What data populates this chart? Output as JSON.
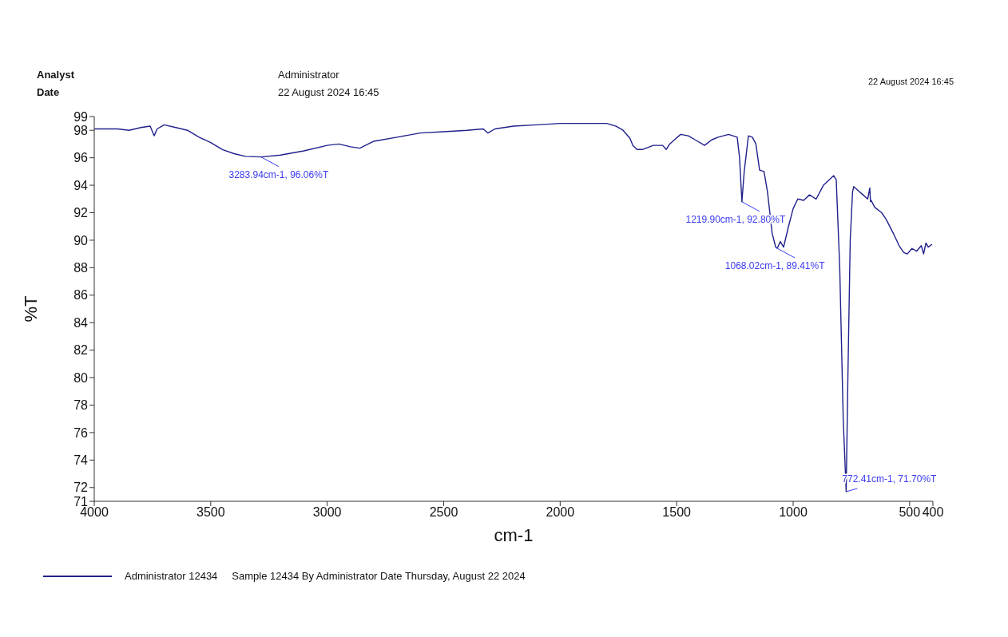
{
  "chart_data": {
    "type": "line",
    "xlabel": "cm-1",
    "ylabel": "%T",
    "x": [
      4000,
      3900,
      3850,
      3800,
      3760,
      3743,
      3730,
      3700,
      3650,
      3600,
      3550,
      3500,
      3450,
      3400,
      3350,
      3283.94,
      3200,
      3100,
      3000,
      2950,
      2900,
      2860,
      2800,
      2700,
      2600,
      2500,
      2400,
      2330,
      2310,
      2280,
      2200,
      2100,
      2000,
      1900,
      1800,
      1760,
      1730,
      1700,
      1688,
      1670,
      1647,
      1600,
      1560,
      1545,
      1530,
      1510,
      1483,
      1450,
      1420,
      1380,
      1350,
      1322,
      1277,
      1240,
      1230,
      1219.9,
      1210,
      1192,
      1175,
      1160,
      1144,
      1125,
      1110,
      1090,
      1075,
      1068.02,
      1055,
      1041,
      1020,
      1000,
      980,
      955,
      930,
      901,
      870,
      826,
      815,
      800,
      785,
      772.41,
      765,
      755,
      745,
      740,
      720,
      700,
      680,
      671,
      668,
      665,
      650,
      620,
      600,
      570,
      545,
      525,
      510,
      490,
      470,
      450,
      440,
      430,
      420,
      404
    ],
    "series": [
      {
        "name": "Administrator 12434",
        "color": "#20208c",
        "values": [
          98.1,
          98.1,
          98.0,
          98.2,
          98.3,
          97.6,
          98.1,
          98.4,
          98.2,
          98.0,
          97.5,
          97.1,
          96.6,
          96.3,
          96.1,
          96.06,
          96.2,
          96.5,
          96.9,
          97.0,
          96.8,
          96.7,
          97.2,
          97.5,
          97.8,
          97.9,
          98.0,
          98.1,
          97.8,
          98.1,
          98.3,
          98.4,
          98.5,
          98.5,
          98.5,
          98.3,
          98.0,
          97.4,
          96.9,
          96.6,
          96.6,
          96.9,
          96.9,
          96.6,
          97.0,
          97.3,
          97.7,
          97.6,
          97.3,
          96.9,
          97.3,
          97.5,
          97.7,
          97.5,
          96.0,
          92.8,
          95.0,
          97.6,
          97.5,
          97.0,
          95.1,
          95.0,
          93.5,
          90.5,
          89.5,
          89.41,
          89.9,
          89.5,
          91.0,
          92.3,
          93.0,
          92.9,
          93.3,
          93.0,
          94.0,
          94.7,
          94.4,
          88.0,
          77.0,
          71.7,
          80.0,
          90.0,
          93.5,
          93.9,
          93.6,
          93.3,
          93.0,
          93.8,
          92.8,
          92.9,
          92.4,
          92.0,
          91.5,
          90.5,
          89.6,
          89.1,
          89.0,
          89.4,
          89.2,
          89.6,
          89.0,
          89.8,
          89.5,
          89.7
        ]
      }
    ],
    "xlim": [
      4000,
      400
    ],
    "xticks": [
      4000,
      3500,
      3000,
      2500,
      2000,
      1500,
      1000,
      500,
      400
    ],
    "ylim": [
      71,
      99
    ],
    "yticks": [
      71,
      72,
      74,
      76,
      78,
      80,
      82,
      84,
      86,
      88,
      90,
      92,
      94,
      96,
      98,
      99
    ],
    "grid": false,
    "marker": "none",
    "line_style": "solid",
    "legend": "bottom",
    "annotations": [
      "Analyst",
      "Administrator",
      "Date",
      "22 August 2024 16:45",
      "22 August 2024 16:45",
      "Sample 12434 By Administrator Date Thursday, August 22 2024",
      {
        "text": "3283.94cm-1, 96.06%T",
        "x": 3283.94,
        "y": 96.06
      },
      {
        "text": "1219.90cm-1, 92.80%T",
        "x": 1219.9,
        "y": 92.8
      },
      {
        "text": "1068.02cm-1, 89.41%T",
        "x": 1068.02,
        "y": 89.41
      },
      {
        "text": "772.41cm-1, 71.70%T",
        "x": 772.41,
        "y": 71.7
      }
    ]
  }
}
